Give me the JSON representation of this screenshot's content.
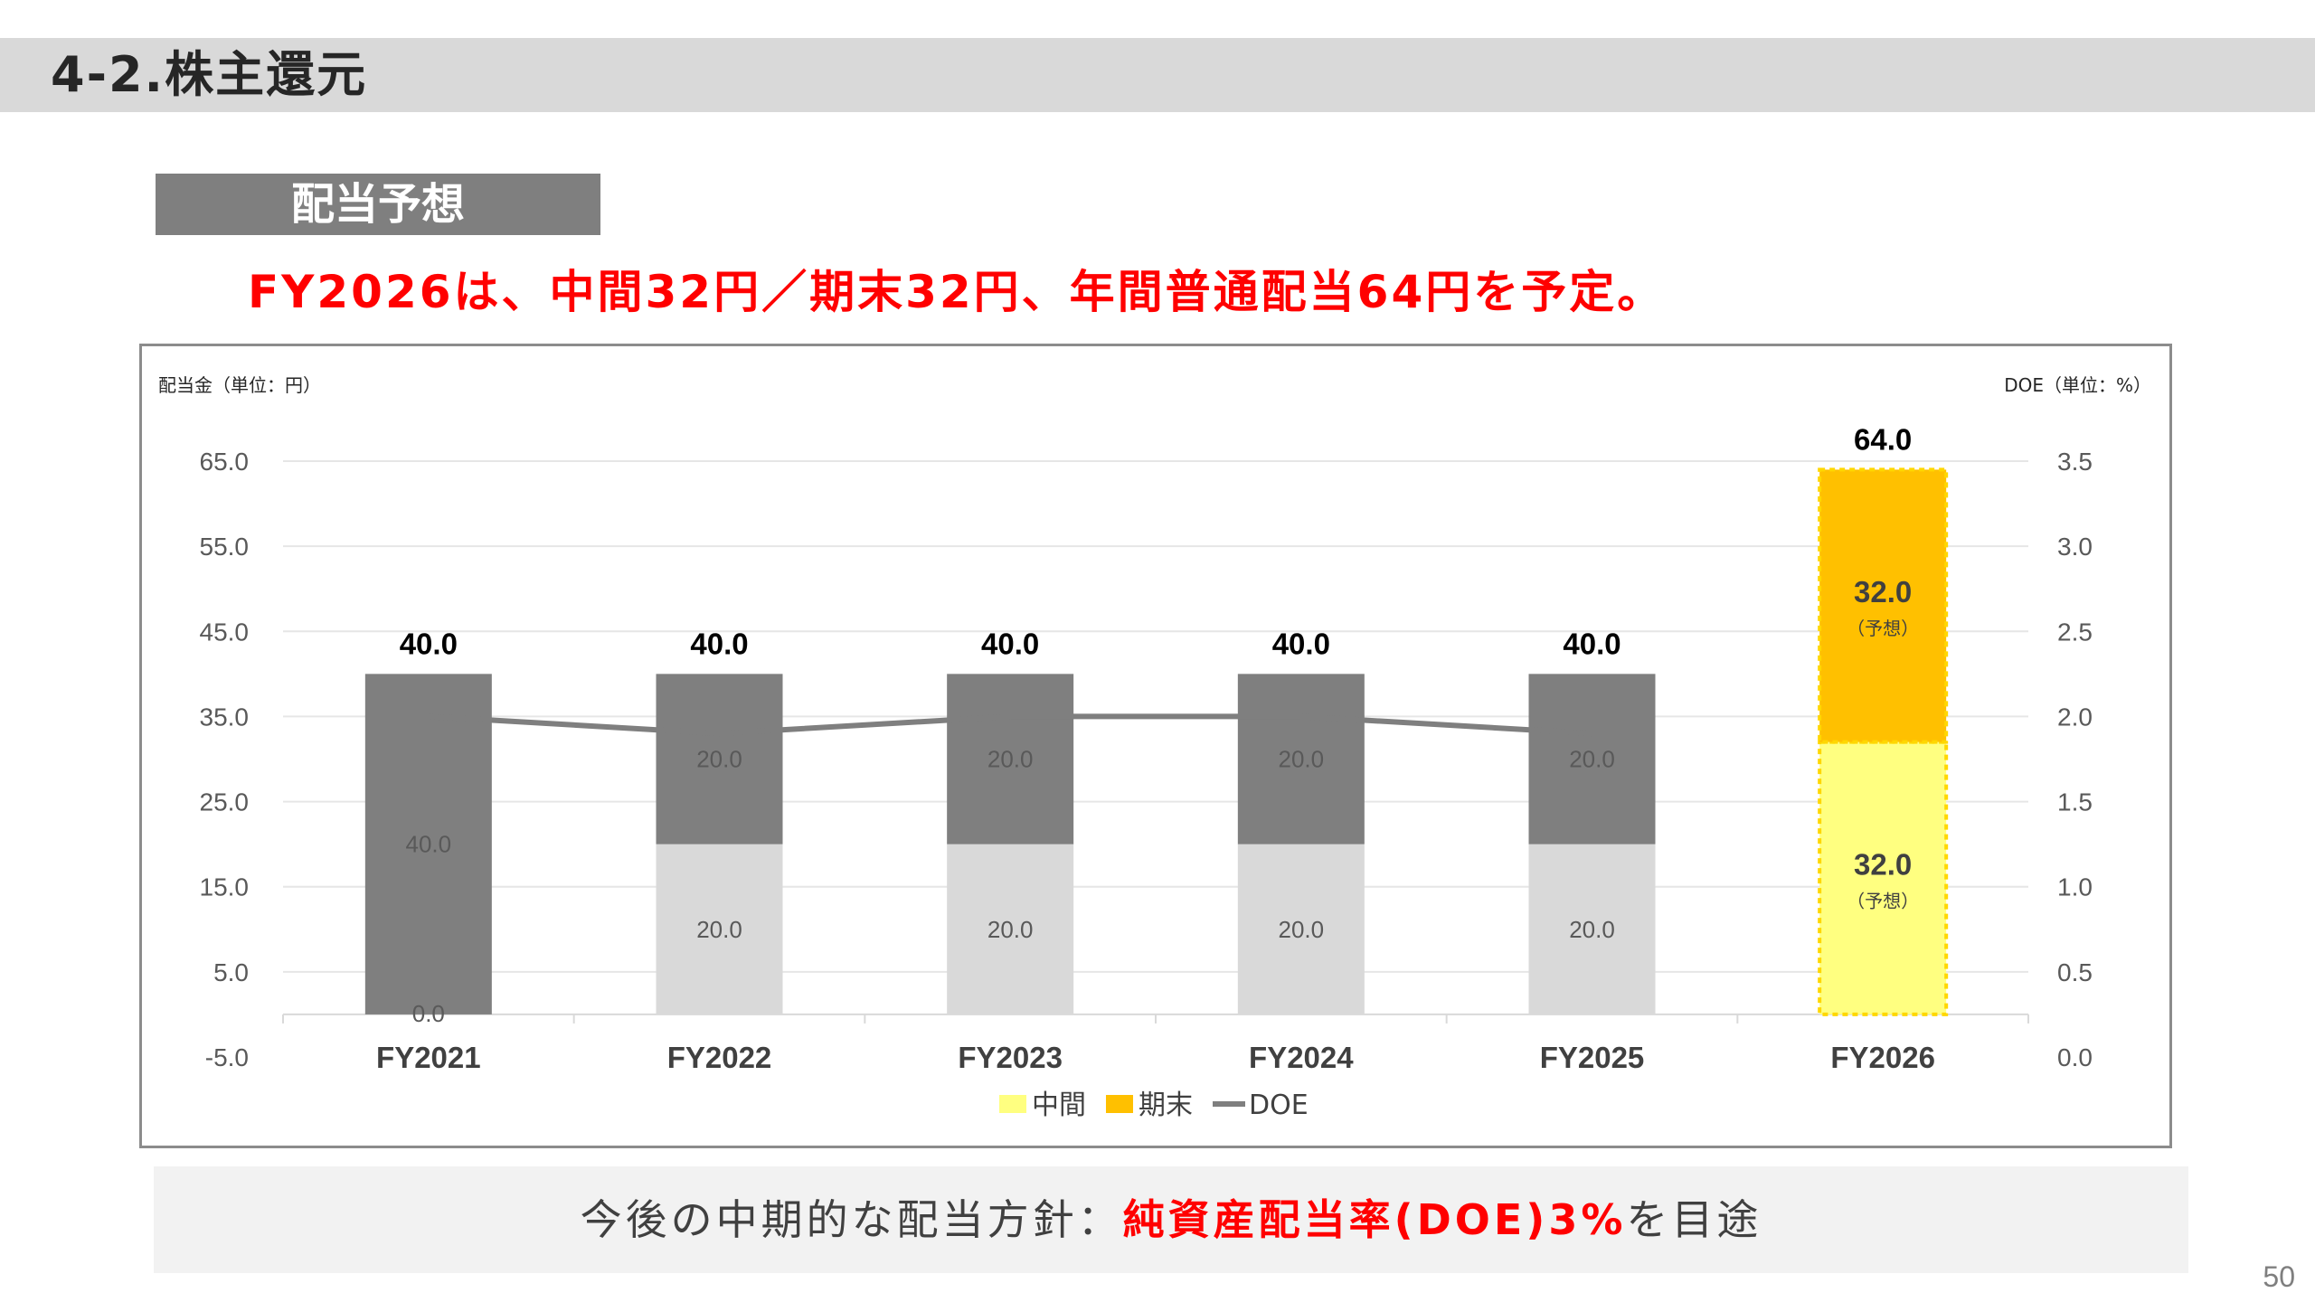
{
  "slide": {
    "title": "4-2.株主還元",
    "section_tag": "配当予想",
    "headline": "FY2026は、中間32円／期末32円、年間普通配当64円を予定。",
    "policy_prefix": "今後の中期的な配当方針：",
    "policy_emphasis": "純資産配当率(DOE)3%",
    "policy_suffix": "を目途",
    "page_number": "50"
  },
  "chart_data": {
    "type": "bar",
    "stacked": true,
    "categories": [
      "FY2021",
      "FY2022",
      "FY2023",
      "FY2024",
      "FY2025",
      "FY2026"
    ],
    "y_left_label": "配当金（単位：円）",
    "y_right_label": "DOE（単位：%）",
    "y_left_ticks": [
      "-5.0",
      "5.0",
      "15.0",
      "25.0",
      "35.0",
      "45.0",
      "55.0",
      "65.0"
    ],
    "y_right_ticks": [
      "0.0",
      "0.5",
      "1.0",
      "1.5",
      "2.0",
      "2.5",
      "3.0",
      "3.5"
    ],
    "ylim_left": [
      -5,
      65
    ],
    "ylim_right": [
      0,
      3.5
    ],
    "grid": true,
    "legend_position": "bottom",
    "series": [
      {
        "name": "中間",
        "values": [
          0,
          20,
          20,
          20,
          20,
          32
        ],
        "labels": [
          "0.0",
          "20.0",
          "20.0",
          "20.0",
          "20.0",
          "32.0"
        ],
        "colors": [
          "#d9d9d9",
          "#d9d9d9",
          "#d9d9d9",
          "#d9d9d9",
          "#d9d9d9",
          "#ffff80"
        ],
        "legend_color": "#ffff80"
      },
      {
        "name": "期末",
        "values": [
          40,
          20,
          20,
          20,
          20,
          32
        ],
        "labels": [
          "40.0",
          "20.0",
          "20.0",
          "20.0",
          "20.0",
          "32.0"
        ],
        "colors": [
          "#7f7f7f",
          "#7f7f7f",
          "#7f7f7f",
          "#7f7f7f",
          "#7f7f7f",
          "#ffc000"
        ],
        "legend_color": "#ffc000"
      }
    ],
    "line_series": {
      "name": "DOE",
      "axis": "right",
      "values": [
        2.0,
        1.9,
        2.0,
        2.0,
        1.9,
        null
      ],
      "color": "#7f7f7f"
    },
    "totals": [
      "40.0",
      "40.0",
      "40.0",
      "40.0",
      "40.0",
      "64.0"
    ],
    "forecast_note": "（予想）",
    "forecast_category": "FY2026"
  }
}
